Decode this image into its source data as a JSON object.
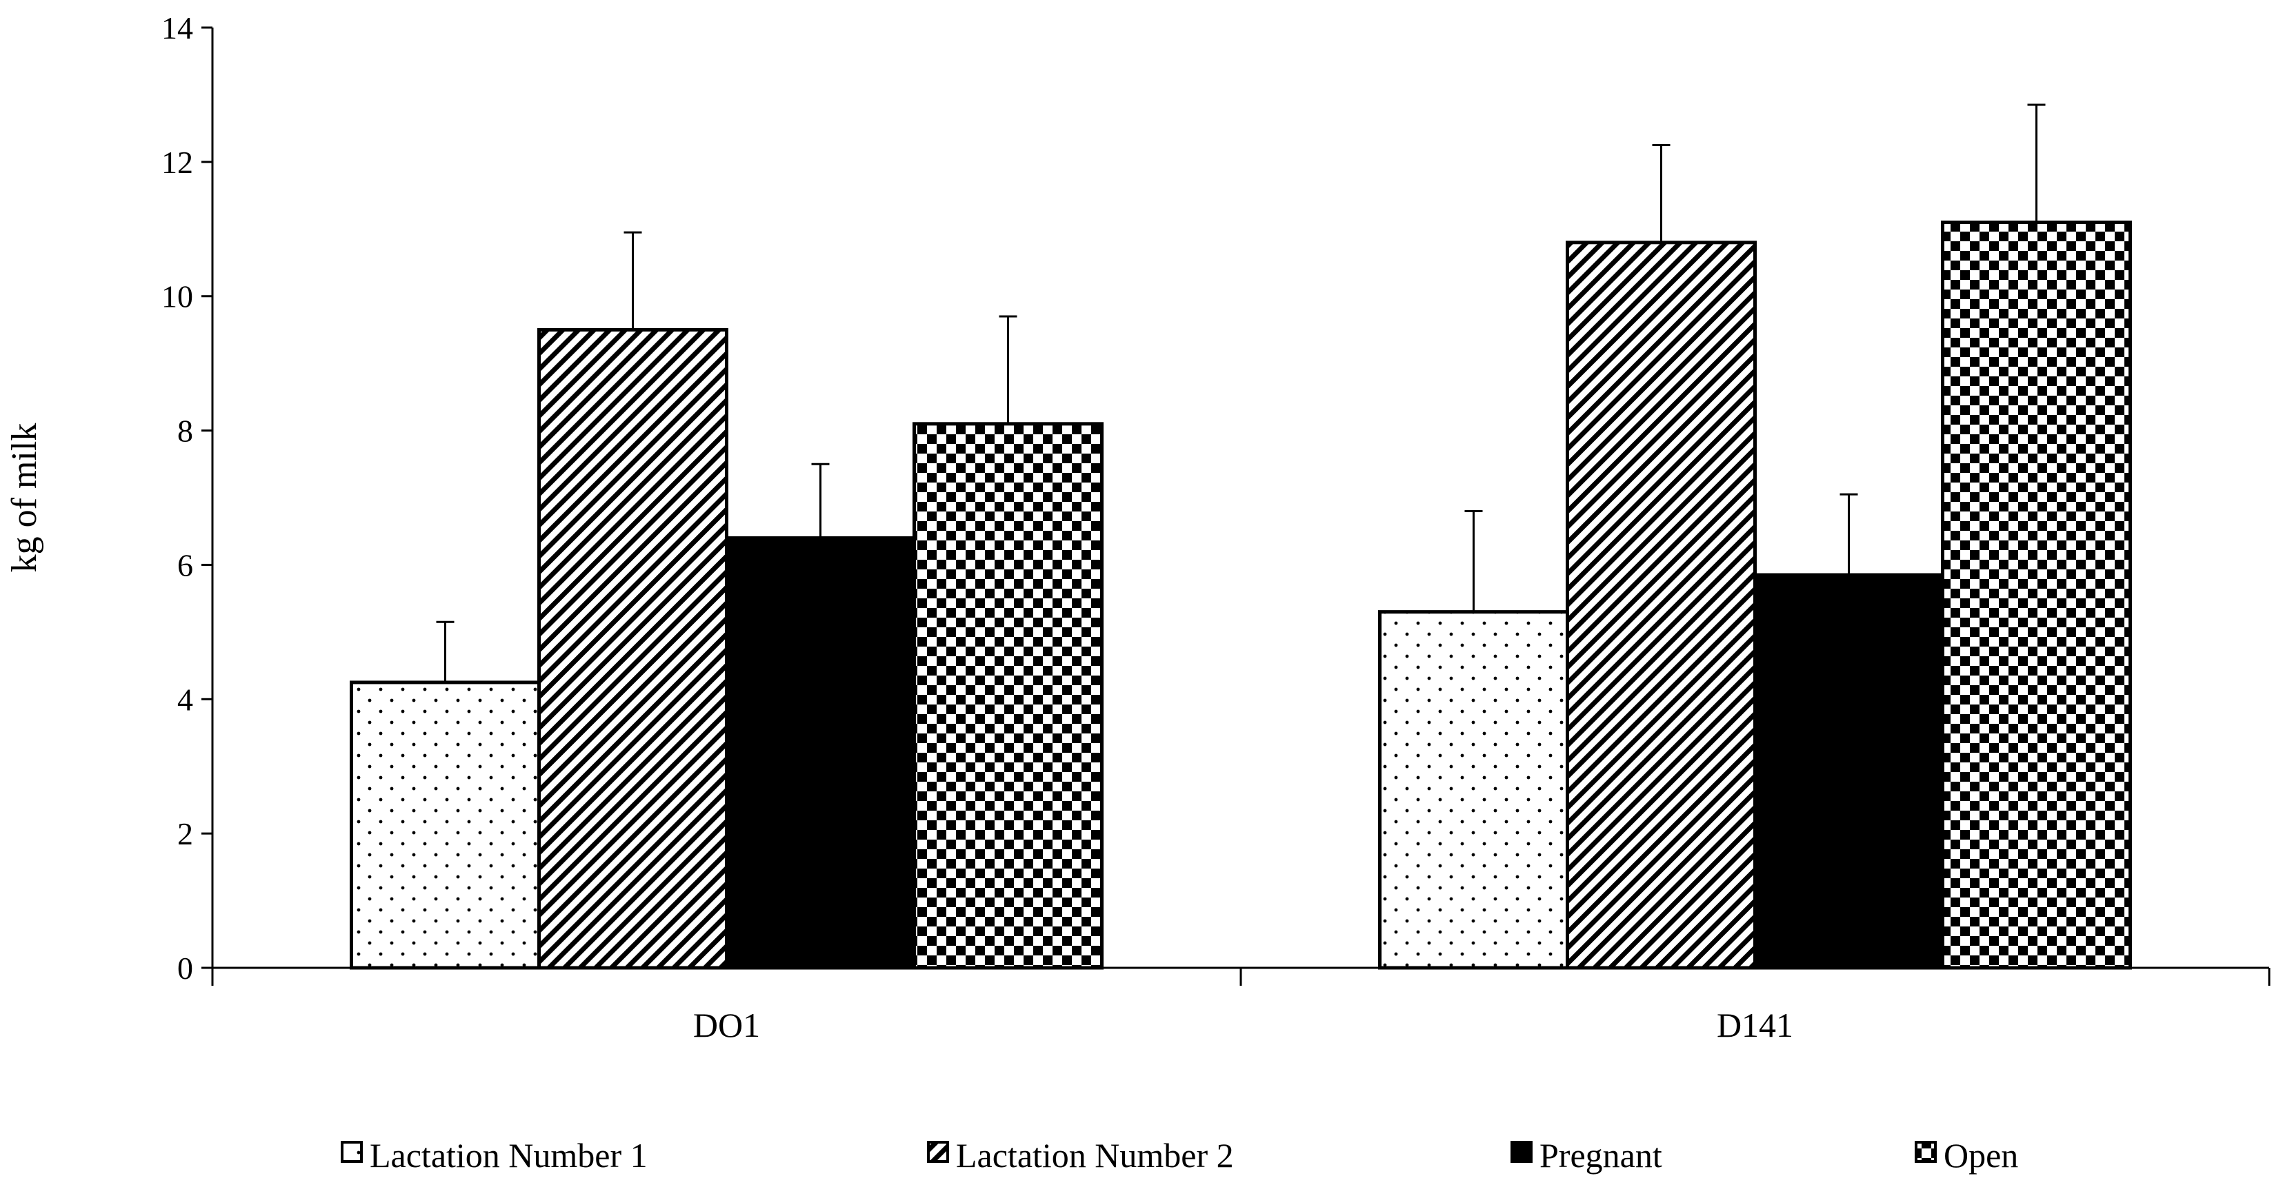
{
  "chart_data": {
    "type": "bar",
    "title": "",
    "xlabel": "",
    "ylabel": "kg of milk",
    "ylim": [
      0,
      14
    ],
    "yticks": [
      0,
      2,
      4,
      6,
      8,
      10,
      12,
      14
    ],
    "categories": [
      "DO1",
      "D141"
    ],
    "series": [
      {
        "name": "Lactation Number 1",
        "pattern": "dots",
        "values": [
          4.25,
          5.3
        ],
        "errors": [
          0.9,
          1.5
        ]
      },
      {
        "name": "Lactation Number 2",
        "pattern": "diagonal",
        "values": [
          9.5,
          10.8
        ],
        "errors": [
          1.45,
          1.45
        ]
      },
      {
        "name": "Pregnant",
        "pattern": "solid",
        "values": [
          6.4,
          5.85
        ],
        "errors": [
          1.1,
          1.2
        ]
      },
      {
        "name": "Open",
        "pattern": "checker",
        "values": [
          8.1,
          11.1
        ],
        "errors": [
          1.6,
          1.75
        ]
      }
    ],
    "legend_position": "bottom"
  }
}
